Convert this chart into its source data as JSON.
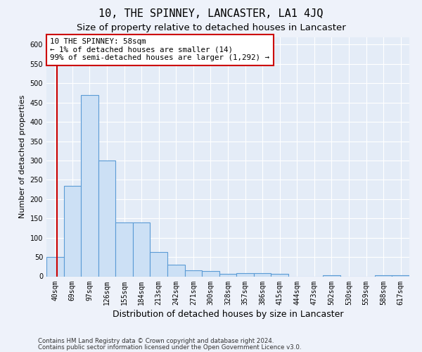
{
  "title": "10, THE SPINNEY, LANCASTER, LA1 4JQ",
  "subtitle": "Size of property relative to detached houses in Lancaster",
  "xlabel": "Distribution of detached houses by size in Lancaster",
  "ylabel": "Number of detached properties",
  "categories": [
    "40sqm",
    "69sqm",
    "97sqm",
    "126sqm",
    "155sqm",
    "184sqm",
    "213sqm",
    "242sqm",
    "271sqm",
    "300sqm",
    "328sqm",
    "357sqm",
    "386sqm",
    "415sqm",
    "444sqm",
    "473sqm",
    "502sqm",
    "530sqm",
    "559sqm",
    "588sqm",
    "617sqm"
  ],
  "values": [
    50,
    235,
    470,
    300,
    140,
    140,
    63,
    30,
    16,
    14,
    7,
    8,
    8,
    6,
    0,
    0,
    3,
    0,
    0,
    3,
    3
  ],
  "bar_color": "#cce0f5",
  "bar_edge_color": "#5b9bd5",
  "annotation_box_text": "10 THE SPINNEY: 58sqm\n← 1% of detached houses are smaller (14)\n99% of semi-detached houses are larger (1,292) →",
  "annotation_box_color": "#ffffff",
  "annotation_box_edge_color": "#cc0000",
  "annotation_line_color": "#cc0000",
  "ylim": [
    0,
    620
  ],
  "yticks": [
    0,
    50,
    100,
    150,
    200,
    250,
    300,
    350,
    400,
    450,
    500,
    550,
    600
  ],
  "footer_line1": "Contains HM Land Registry data © Crown copyright and database right 2024.",
  "footer_line2": "Contains public sector information licensed under the Open Government Licence v3.0.",
  "bg_color": "#eef2fa",
  "plot_bg_color": "#e4ecf7",
  "grid_color": "#ffffff",
  "title_fontsize": 11,
  "subtitle_fontsize": 9.5,
  "tick_fontsize": 7,
  "ylabel_fontsize": 8,
  "xlabel_fontsize": 9
}
